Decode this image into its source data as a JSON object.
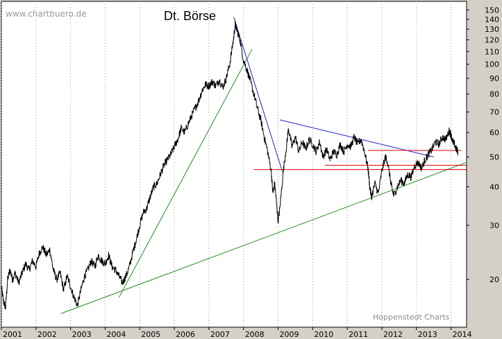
{
  "chart_data": {
    "type": "line",
    "title": "Dt. Börse",
    "watermark": "www.chartbuero.de",
    "source": "Hoppenstedt Charts",
    "y_scale": "log",
    "ylim": [
      14,
      160
    ],
    "xlim": [
      2001.0,
      2014.45
    ],
    "x_ticks": [
      "2001",
      "2002",
      "2003",
      "2004",
      "2005",
      "2006",
      "2007",
      "2008",
      "2009",
      "2010",
      "2011",
      "2012",
      "2013",
      "2014"
    ],
    "y_ticks": [
      150,
      140,
      130,
      120,
      110,
      100,
      90,
      80,
      70,
      60,
      50,
      40,
      30,
      20
    ],
    "grid": "vertical-dotted",
    "series": [
      {
        "color": "#000000",
        "points": [
          [
            2001.0,
            19.0
          ],
          [
            2001.06,
            17.0
          ],
          [
            2001.12,
            16.2
          ],
          [
            2001.18,
            20.0
          ],
          [
            2001.25,
            21.5
          ],
          [
            2001.32,
            20.0
          ],
          [
            2001.4,
            21.0
          ],
          [
            2001.5,
            19.5
          ],
          [
            2001.6,
            21.0
          ],
          [
            2001.7,
            22.5
          ],
          [
            2001.8,
            21.5
          ],
          [
            2001.9,
            23.0
          ],
          [
            2002.0,
            22.0
          ],
          [
            2002.1,
            24.5
          ],
          [
            2002.2,
            25.5
          ],
          [
            2002.3,
            24.0
          ],
          [
            2002.4,
            25.0
          ],
          [
            2002.5,
            21.5
          ],
          [
            2002.6,
            20.0
          ],
          [
            2002.7,
            21.0
          ],
          [
            2002.8,
            18.5
          ],
          [
            2002.9,
            20.5
          ],
          [
            2003.0,
            19.0
          ],
          [
            2003.1,
            17.5
          ],
          [
            2003.2,
            16.5
          ],
          [
            2003.3,
            18.5
          ],
          [
            2003.4,
            20.5
          ],
          [
            2003.5,
            21.5
          ],
          [
            2003.6,
            23.0
          ],
          [
            2003.7,
            22.0
          ],
          [
            2003.8,
            24.0
          ],
          [
            2003.9,
            23.0
          ],
          [
            2004.0,
            22.5
          ],
          [
            2004.1,
            24.0
          ],
          [
            2004.2,
            22.0
          ],
          [
            2004.3,
            21.5
          ],
          [
            2004.4,
            20.5
          ],
          [
            2004.5,
            19.5
          ],
          [
            2004.6,
            20.5
          ],
          [
            2004.7,
            22.0
          ],
          [
            2004.8,
            24.5
          ],
          [
            2004.9,
            27.0
          ],
          [
            2005.0,
            30.0
          ],
          [
            2005.1,
            33.0
          ],
          [
            2005.2,
            34.0
          ],
          [
            2005.3,
            37.0
          ],
          [
            2005.4,
            40.0
          ],
          [
            2005.5,
            41.0
          ],
          [
            2005.6,
            44.0
          ],
          [
            2005.7,
            47.0
          ],
          [
            2005.8,
            49.0
          ],
          [
            2005.9,
            51.0
          ],
          [
            2006.0,
            54.0
          ],
          [
            2006.1,
            57.0
          ],
          [
            2006.2,
            62.0
          ],
          [
            2006.3,
            60.0
          ],
          [
            2006.4,
            64.0
          ],
          [
            2006.5,
            68.0
          ],
          [
            2006.6,
            72.0
          ],
          [
            2006.7,
            76.0
          ],
          [
            2006.8,
            82.0
          ],
          [
            2006.9,
            86.0
          ],
          [
            2007.0,
            85.0
          ],
          [
            2007.1,
            88.0
          ],
          [
            2007.2,
            85.0
          ],
          [
            2007.3,
            89.0
          ],
          [
            2007.4,
            84.0
          ],
          [
            2007.5,
            90.0
          ],
          [
            2007.6,
            100.0
          ],
          [
            2007.7,
            118.0
          ],
          [
            2007.76,
            135.0
          ],
          [
            2007.82,
            128.0
          ],
          [
            2007.9,
            120.0
          ],
          [
            2008.0,
            103.0
          ],
          [
            2008.1,
            96.0
          ],
          [
            2008.2,
            88.0
          ],
          [
            2008.3,
            80.0
          ],
          [
            2008.4,
            72.0
          ],
          [
            2008.5,
            66.0
          ],
          [
            2008.6,
            58.0
          ],
          [
            2008.7,
            52.0
          ],
          [
            2008.8,
            45.0
          ],
          [
            2008.85,
            38.0
          ],
          [
            2008.9,
            41.0
          ],
          [
            2008.95,
            36.0
          ],
          [
            2009.0,
            31.0
          ],
          [
            2009.05,
            34.0
          ],
          [
            2009.15,
            45.0
          ],
          [
            2009.25,
            55.0
          ],
          [
            2009.3,
            62.0
          ],
          [
            2009.4,
            54.0
          ],
          [
            2009.5,
            58.0
          ],
          [
            2009.6,
            52.0
          ],
          [
            2009.7,
            56.0
          ],
          [
            2009.8,
            53.0
          ],
          [
            2009.9,
            57.0
          ],
          [
            2010.0,
            55.0
          ],
          [
            2010.1,
            52.0
          ],
          [
            2010.2,
            56.0
          ],
          [
            2010.3,
            50.0
          ],
          [
            2010.4,
            53.0
          ],
          [
            2010.5,
            49.0
          ],
          [
            2010.6,
            52.0
          ],
          [
            2010.7,
            51.0
          ],
          [
            2010.8,
            55.0
          ],
          [
            2010.9,
            52.0
          ],
          [
            2011.0,
            55.0
          ],
          [
            2011.1,
            54.0
          ],
          [
            2011.2,
            58.0
          ],
          [
            2011.3,
            55.0
          ],
          [
            2011.4,
            57.0
          ],
          [
            2011.5,
            52.0
          ],
          [
            2011.6,
            46.0
          ],
          [
            2011.65,
            40.0
          ],
          [
            2011.7,
            37.0
          ],
          [
            2011.8,
            41.0
          ],
          [
            2011.9,
            38.0
          ],
          [
            2012.0,
            45.0
          ],
          [
            2012.1,
            50.0
          ],
          [
            2012.15,
            49.0
          ],
          [
            2012.25,
            42.0
          ],
          [
            2012.3,
            39.0
          ],
          [
            2012.35,
            37.5
          ],
          [
            2012.45,
            40.0
          ],
          [
            2012.55,
            42.0
          ],
          [
            2012.65,
            41.0
          ],
          [
            2012.75,
            44.0
          ],
          [
            2012.85,
            43.0
          ],
          [
            2012.95,
            47.0
          ],
          [
            2013.05,
            48.0
          ],
          [
            2013.15,
            46.0
          ],
          [
            2013.25,
            49.0
          ],
          [
            2013.35,
            51.0
          ],
          [
            2013.45,
            53.0
          ],
          [
            2013.55,
            56.0
          ],
          [
            2013.65,
            55.0
          ],
          [
            2013.75,
            58.0
          ],
          [
            2013.85,
            57.0
          ],
          [
            2013.95,
            61.0
          ],
          [
            2014.0,
            59.0
          ],
          [
            2014.05,
            56.0
          ],
          [
            2014.1,
            55.0
          ],
          [
            2014.15,
            53.0
          ],
          [
            2014.2,
            52.0
          ]
        ]
      }
    ],
    "trendlines": [
      {
        "color": "#228b22",
        "from": [
          2002.72,
          15.5
        ],
        "to": [
          2014.45,
          48.0
        ]
      },
      {
        "color": "#228b22",
        "from": [
          2004.4,
          17.5
        ],
        "to": [
          2008.25,
          112.0
        ]
      },
      {
        "color": "#2222cc",
        "from": [
          2007.72,
          142.0
        ],
        "to": [
          2009.12,
          45.0
        ]
      },
      {
        "color": "#2222cc",
        "from": [
          2009.05,
          66.0
        ],
        "to": [
          2013.5,
          50.0
        ]
      },
      {
        "color": "#dd0000",
        "from": [
          2008.3,
          45.5
        ],
        "to": [
          2014.45,
          45.5
        ]
      },
      {
        "color": "#dd0000",
        "from": [
          2010.35,
          47.0
        ],
        "to": [
          2014.45,
          47.0
        ]
      },
      {
        "color": "#dd0000",
        "from": [
          2011.6,
          52.5
        ],
        "to": [
          2014.3,
          52.5
        ]
      }
    ]
  }
}
